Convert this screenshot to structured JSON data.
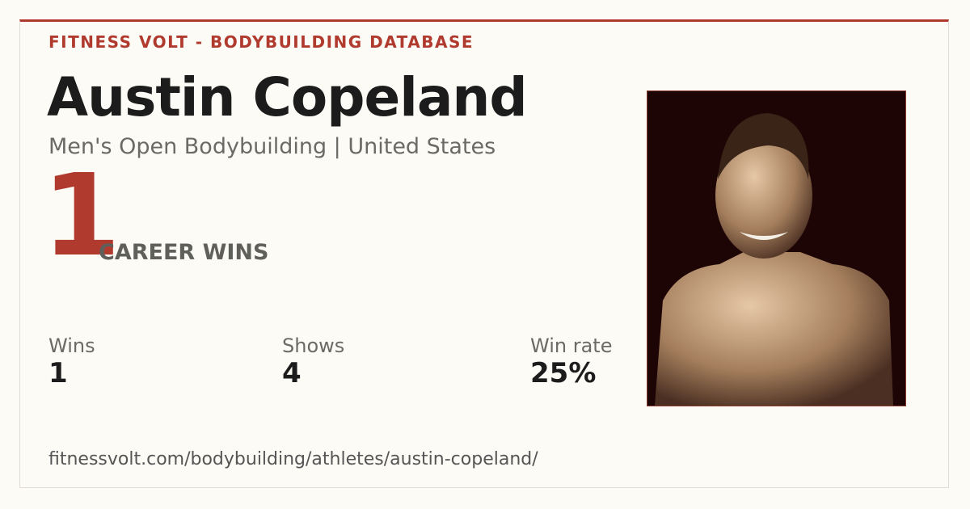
{
  "header": {
    "brand": "FITNESS VOLT - BODYBUILDING DATABASE"
  },
  "athlete": {
    "name": "Austin Copeland",
    "subtitle": "Men's Open Bodybuilding | United States"
  },
  "highlight": {
    "number": "1",
    "label": "CAREER WINS"
  },
  "stats": [
    {
      "label": "Wins",
      "value": "1"
    },
    {
      "label": "Shows",
      "value": "4"
    },
    {
      "label": "Win rate",
      "value": "25%"
    }
  ],
  "footer": {
    "url": "fitnessvolt.com/bodybuilding/athletes/austin-copeland/"
  }
}
